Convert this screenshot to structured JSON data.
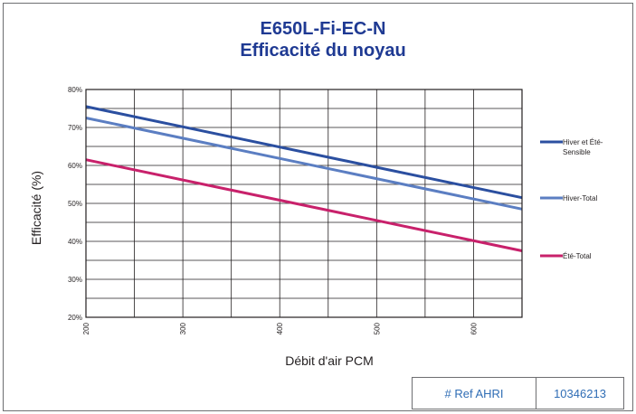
{
  "chart_data": {
    "type": "line",
    "title": "E650L-Fi-EC-N",
    "subtitle": "Efficacité du noyau",
    "xlabel": "Débit d'air PCM",
    "ylabel": "Efficacité (%)",
    "xlim": [
      200,
      650
    ],
    "ylim": [
      20,
      80
    ],
    "x_ticks": [
      "200",
      "300",
      "400",
      "500",
      "600"
    ],
    "y_ticks": [
      "20%",
      "30%",
      "40%",
      "50%",
      "60%",
      "70%",
      "80%"
    ],
    "grid": true,
    "legend_position": "right",
    "series": [
      {
        "name": "Hiver et Été-Sensible",
        "name_lines": [
          "Hiver et Été-",
          "Sensible"
        ],
        "color": "#2b4fa0",
        "x": [
          200,
          650
        ],
        "y": [
          75.5,
          51.5
        ]
      },
      {
        "name": "Hiver-Total",
        "name_lines": [
          "Hiver-Total"
        ],
        "color": "#5b7ec2",
        "x": [
          200,
          650
        ],
        "y": [
          72.5,
          48.5
        ]
      },
      {
        "name": "Été-Total",
        "name_lines": [
          "Été-Total"
        ],
        "color": "#c8216b",
        "x": [
          200,
          650
        ],
        "y": [
          61.5,
          37.5
        ]
      }
    ]
  },
  "ref_table": {
    "label": "# Ref AHRI",
    "value": "10346213"
  }
}
